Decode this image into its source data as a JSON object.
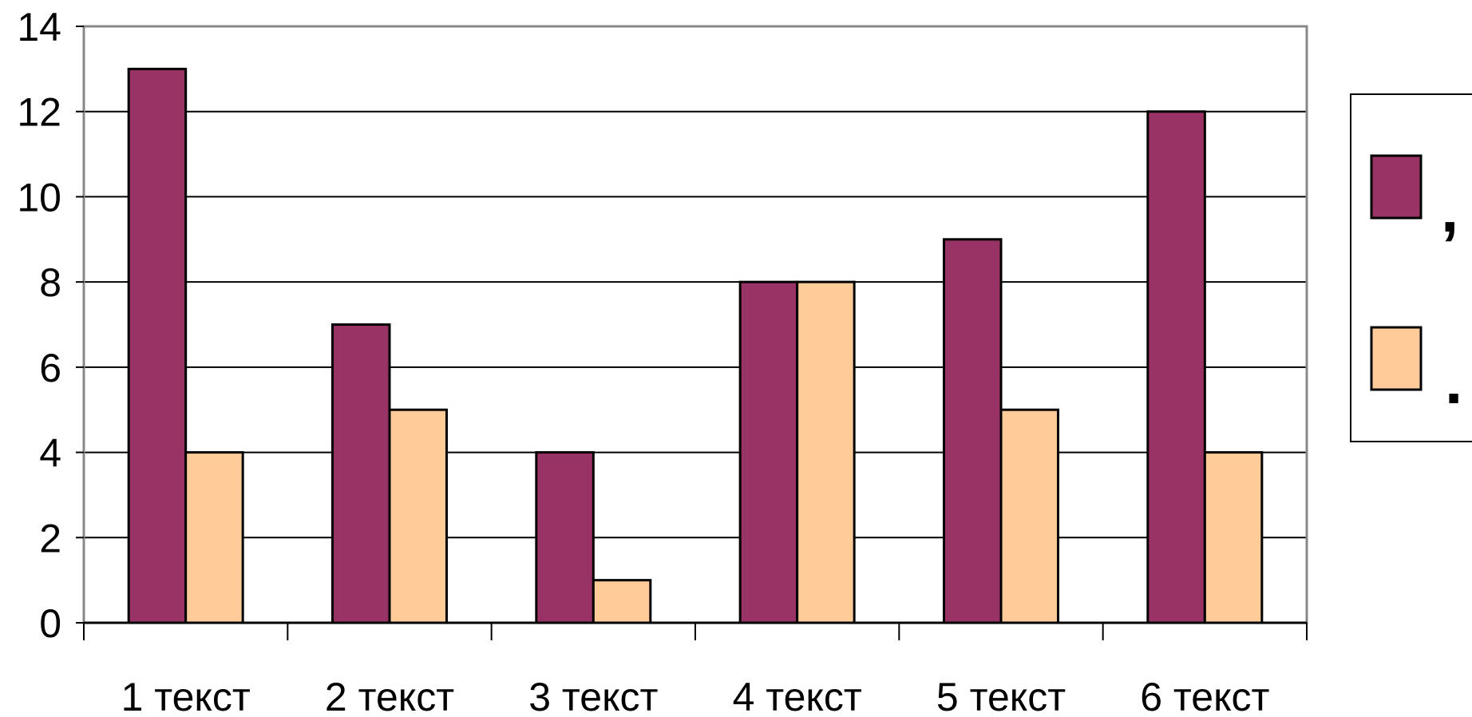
{
  "chart_data": {
    "type": "bar",
    "categories": [
      "1 текст",
      "2 текст",
      "3 текст",
      "4 текст",
      "5 текст",
      "6 текст"
    ],
    "series": [
      {
        "name": ",",
        "color": "#993366",
        "values": [
          13,
          7,
          4,
          8,
          9,
          12
        ]
      },
      {
        "name": ".",
        "color": "#FFCC99",
        "values": [
          4,
          5,
          1,
          8,
          5,
          4
        ]
      }
    ],
    "title": "",
    "xlabel": "",
    "ylabel": "",
    "ylim": [
      0,
      14
    ],
    "yticks": [
      0,
      2,
      4,
      6,
      8,
      10,
      12,
      14
    ],
    "grid": true,
    "legend_position": "right"
  }
}
